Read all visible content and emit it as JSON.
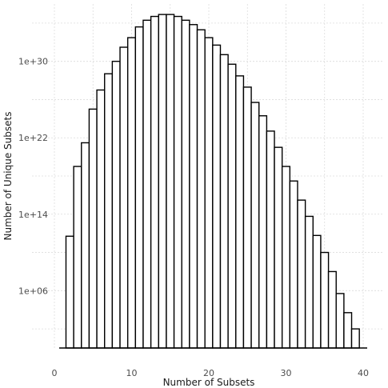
{
  "chart_data": {
    "type": "bar",
    "title": "",
    "xlabel": "Number of Subsets",
    "ylabel": "Number of Unique Subsets",
    "y_scale": "log10",
    "xlim": [
      0,
      40
    ],
    "ylim": [
      1,
      1e+36
    ],
    "grid": true,
    "x_ticks": [
      0,
      10,
      20,
      30,
      40
    ],
    "x_tick_labels": [
      "0",
      "10",
      "20",
      "30",
      "40"
    ],
    "y_ticks": [
      1000000.0,
      100000000000000.0,
      1e+22,
      1e+30
    ],
    "y_tick_labels": [
      "1e+06",
      "1e+14",
      "1e+22",
      "1e+30"
    ],
    "x": [
      2,
      3,
      4,
      5,
      6,
      7,
      8,
      9,
      10,
      11,
      12,
      13,
      14,
      15,
      16,
      17,
      18,
      19,
      20,
      21,
      22,
      23,
      24,
      25,
      26,
      27,
      28,
      29,
      30,
      31,
      32,
      33,
      34,
      35,
      36,
      37,
      38,
      39
    ],
    "values": [
      500000000000.0,
      1e+19,
      3e+21,
      1e+25,
      1e+27,
      5e+28,
      1e+30,
      3e+31,
      3e+32,
      4e+33,
      2e+34,
      5e+34,
      8e+34,
      8e+34,
      5e+34,
      2e+34,
      7e+33,
      2e+33,
      3e+32,
      5e+31,
      5e+30,
      5e+29,
      3e+28,
      2e+27,
      5e+25,
      2e+24,
      5e+22,
      1e+21,
      1e+19,
      3e+17,
      3000000000000000.0,
      60000000000000.0,
      600000000000.0,
      10000000000.0,
      100000000.0,
      500000.0,
      5000.0,
      100.0
    ]
  }
}
